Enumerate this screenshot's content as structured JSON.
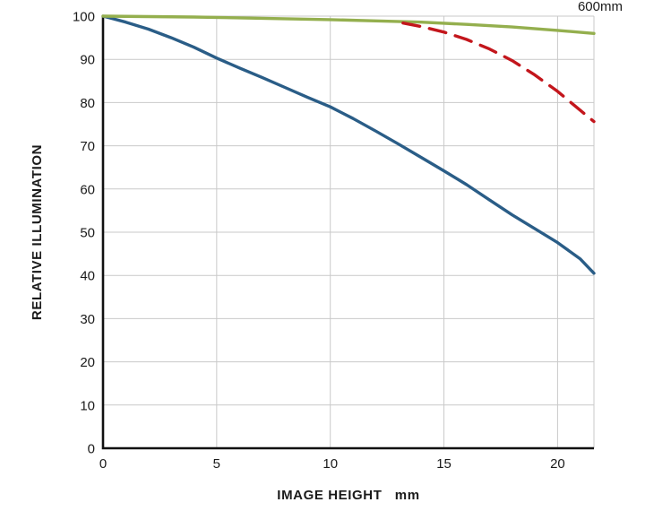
{
  "chart_data": {
    "type": "line",
    "title": "600mm",
    "xlabel": "IMAGE HEIGHT   mm",
    "ylabel": "RELATIVE ILLUMINATION",
    "xlim": [
      0,
      21.6
    ],
    "ylim": [
      0,
      100
    ],
    "xticks": [
      0,
      5,
      10,
      15,
      20
    ],
    "yticks": [
      0,
      10,
      20,
      30,
      40,
      50,
      60,
      70,
      80,
      90,
      100
    ],
    "grid": true,
    "legend_position": "none",
    "colors": {
      "blue": "#2a5d87",
      "green": "#94af4e",
      "red": "#c3161c",
      "grid": "#c9c9c9",
      "axis": "#111111"
    },
    "series": [
      {
        "name": "blue-solid",
        "color": "#2a5d87",
        "dash": null,
        "x": [
          0,
          1,
          2,
          3,
          4,
          5,
          6,
          7,
          8,
          9,
          10,
          11,
          12,
          13,
          14,
          15,
          16,
          17,
          18,
          19,
          20,
          21,
          21.6
        ],
        "y": [
          100,
          98.6,
          97,
          95,
          92.8,
          90.3,
          88,
          85.8,
          83.5,
          81.2,
          79,
          76.3,
          73.4,
          70.4,
          67.3,
          64.2,
          61,
          57.5,
          54,
          50.8,
          47.6,
          43.8,
          40.5
        ]
      },
      {
        "name": "green-solid",
        "color": "#94af4e",
        "dash": null,
        "x": [
          0,
          2,
          4,
          6,
          8,
          10,
          12,
          14,
          16,
          18,
          20,
          21.6
        ],
        "y": [
          100,
          99.9,
          99.8,
          99.6,
          99.4,
          99.2,
          98.9,
          98.6,
          98.1,
          97.5,
          96.7,
          96
        ]
      },
      {
        "name": "red-dashed",
        "color": "#c3161c",
        "dash": "19 11",
        "x": [
          13.2,
          14,
          15,
          16,
          17,
          18,
          19,
          20,
          21,
          21.6
        ],
        "y": [
          98.4,
          97.6,
          96.3,
          94.6,
          92.4,
          89.7,
          86.4,
          82.6,
          78.2,
          75.6
        ]
      }
    ]
  }
}
